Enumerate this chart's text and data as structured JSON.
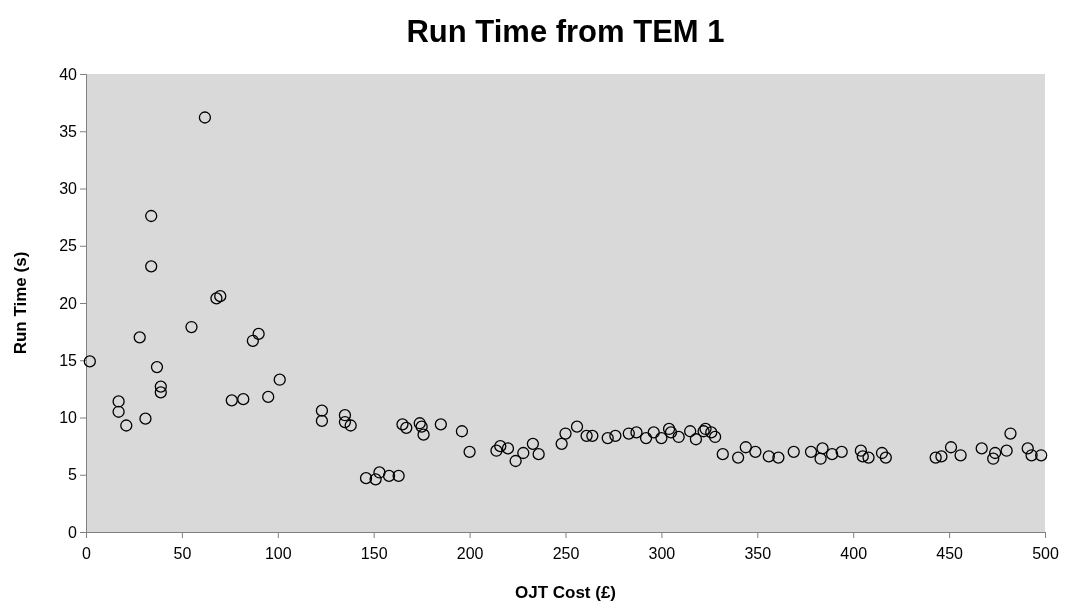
{
  "chart_data": {
    "type": "scatter",
    "title": "Run Time from TEM 1",
    "xlabel": "OJT Cost (£)",
    "ylabel": "Run Time (s)",
    "xlim": [
      0,
      500
    ],
    "ylim": [
      0,
      40
    ],
    "xticks": [
      0,
      50,
      100,
      150,
      200,
      250,
      300,
      350,
      400,
      450,
      500
    ],
    "yticks": [
      0,
      5,
      10,
      15,
      20,
      25,
      30,
      35,
      40
    ],
    "grid": false,
    "marker": "circle",
    "series": [
      {
        "color": "#000000",
        "x": [
          2,
          17,
          17,
          21,
          28,
          31,
          34,
          34,
          37,
          39,
          39,
          55,
          62,
          68,
          70,
          76,
          82,
          87,
          90,
          95,
          101,
          123,
          123,
          135,
          135,
          138,
          146,
          151,
          153,
          158,
          163,
          165,
          167,
          174,
          175,
          176,
          185,
          196,
          200,
          214,
          216,
          220,
          224,
          228,
          233,
          236,
          248,
          250,
          256,
          261,
          264,
          272,
          276,
          283,
          287,
          292,
          296,
          300,
          304,
          305,
          309,
          315,
          318,
          322,
          323,
          326,
          328,
          332,
          340,
          344,
          349,
          356,
          361,
          369,
          378,
          383,
          384,
          389,
          394,
          404,
          405,
          408,
          415,
          417,
          443,
          446,
          451,
          456,
          467,
          473,
          474,
          480,
          482,
          491,
          493,
          498
        ],
        "values": [
          14.9,
          10.5,
          11.4,
          9.3,
          17.0,
          9.9,
          23.2,
          27.6,
          14.4,
          12.7,
          12.2,
          17.9,
          36.2,
          20.4,
          20.6,
          11.5,
          11.6,
          16.7,
          17.3,
          11.8,
          13.3,
          10.6,
          9.7,
          10.2,
          9.6,
          9.3,
          4.7,
          4.6,
          5.2,
          4.9,
          4.9,
          9.4,
          9.1,
          9.5,
          9.2,
          8.5,
          9.4,
          8.8,
          7.0,
          7.1,
          7.5,
          7.3,
          6.2,
          6.9,
          7.7,
          6.8,
          7.7,
          8.6,
          9.2,
          8.4,
          8.4,
          8.2,
          8.4,
          8.6,
          8.7,
          8.2,
          8.7,
          8.2,
          9.0,
          8.7,
          8.3,
          8.8,
          8.1,
          8.8,
          9.0,
          8.7,
          8.3,
          6.8,
          6.5,
          7.4,
          7.0,
          6.6,
          6.5,
          7.0,
          7.0,
          6.4,
          7.3,
          6.8,
          7.0,
          7.1,
          6.6,
          6.5,
          6.9,
          6.5,
          6.5,
          6.6,
          7.4,
          6.7,
          7.3,
          6.4,
          6.9,
          7.1,
          8.6,
          7.3,
          6.7,
          6.7
        ]
      }
    ]
  }
}
